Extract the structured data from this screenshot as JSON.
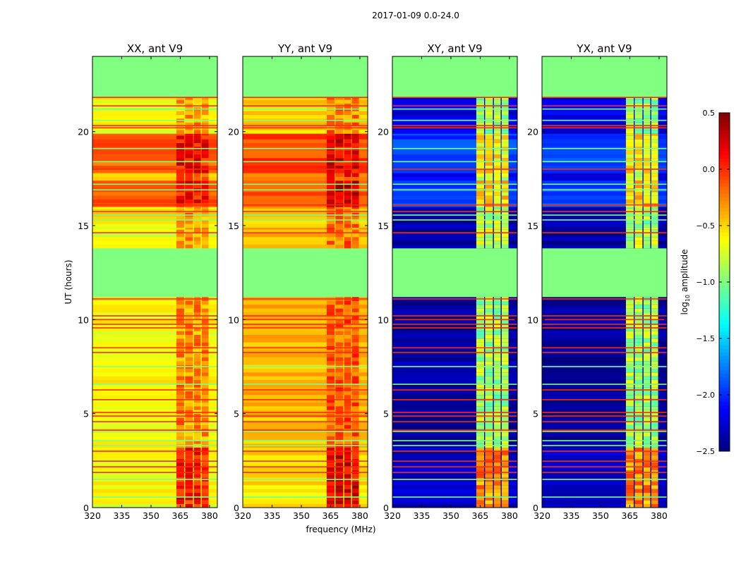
{
  "chart_data": {
    "type": "heatmap",
    "suptitle": "2017-01-09 0.0-24.0",
    "xlabel": "frequency (MHz)",
    "ylabel": "UT (hours)",
    "xlim": [
      320,
      384
    ],
    "ylim": [
      0,
      24
    ],
    "xticks": [
      320,
      335,
      350,
      365,
      380
    ],
    "yticks": [
      0,
      5,
      10,
      15,
      20
    ],
    "colorbar": {
      "label_main": "log",
      "label_sub": "10",
      "label_rest": " amplitude",
      "range": [
        -2.5,
        0.5
      ],
      "ticks": [
        "0.5",
        "0.0",
        "−0.5",
        "−1.0",
        "−1.5",
        "−2.0",
        "−2.5"
      ],
      "tick_values": [
        0.5,
        0.0,
        -0.5,
        -1.0,
        -1.5,
        -2.0,
        -2.5
      ],
      "colormap": "jet"
    },
    "flag_value": -1.0,
    "band_columns_mhz": [
      [
        363,
        367
      ],
      [
        367.5,
        371.5
      ],
      [
        372,
        375.5
      ],
      [
        376,
        379.5
      ]
    ],
    "continuum_range_mhz": [
      320,
      384
    ],
    "flagged_hours": [
      [
        11.2,
        13.8
      ],
      [
        21.8,
        24.0
      ]
    ],
    "red_lines_hours": [
      21.82,
      21.37,
      20.32,
      20.2,
      18.0,
      16.1,
      15.75,
      14.62,
      11.1,
      10.2,
      10.0,
      9.75,
      9.56,
      8.5,
      8.25,
      6.26,
      5.74,
      5.06,
      4.87,
      4.57,
      4.12,
      3.0,
      2.47,
      2.17,
      1.87
    ],
    "green_lines_hours": [
      21.2,
      20.6,
      19.1,
      18.4,
      17.2,
      16.9,
      15.56,
      15.3,
      7.5,
      6.56,
      4.05,
      3.56,
      3.3,
      1.5,
      0.56
    ],
    "panels": [
      {
        "title": "XX, ant V9",
        "segments": [
          {
            "t": [
              0,
              3.2
            ],
            "continuum": -0.65,
            "band": 0.05
          },
          {
            "t": [
              3.2,
              11.2
            ],
            "continuum": -0.62,
            "band": -0.3
          },
          {
            "t": [
              13.8,
              14.9
            ],
            "continuum": -0.7,
            "band": -0.35
          },
          {
            "t": [
              14.9,
              16.0
            ],
            "continuum": -0.55,
            "band": -0.3
          },
          {
            "t": [
              16.0,
              17.4
            ],
            "continuum": -0.12,
            "band": 0.1
          },
          {
            "t": [
              17.4,
              17.8
            ],
            "continuum": -0.5,
            "band": -0.2
          },
          {
            "t": [
              17.8,
              19.9
            ],
            "continuum": -0.15,
            "band": 0.1
          },
          {
            "t": [
              19.9,
              21.8
            ],
            "continuum": -0.65,
            "band": -0.35
          }
        ]
      },
      {
        "title": "YY, ant V9",
        "segments": [
          {
            "t": [
              0,
              3.2
            ],
            "continuum": -0.55,
            "band": 0.2
          },
          {
            "t": [
              3.2,
              11.2
            ],
            "continuum": -0.42,
            "band": -0.15
          },
          {
            "t": [
              13.8,
              14.9
            ],
            "continuum": -0.4,
            "band": -0.2
          },
          {
            "t": [
              14.9,
              16.0
            ],
            "continuum": -0.45,
            "band": -0.2
          },
          {
            "t": [
              16.0,
              17.4
            ],
            "continuum": -0.1,
            "band": 0.25
          },
          {
            "t": [
              17.4,
              17.8
            ],
            "continuum": -0.35,
            "band": 0.0
          },
          {
            "t": [
              17.8,
              19.9
            ],
            "continuum": -0.08,
            "band": 0.2
          },
          {
            "t": [
              19.9,
              21.8
            ],
            "continuum": -0.48,
            "band": -0.25
          }
        ]
      },
      {
        "title": "XY, ant V9",
        "segments": [
          {
            "t": [
              0,
              3.2
            ],
            "continuum": -2.3,
            "band": -0.3
          },
          {
            "t": [
              3.2,
              11.2
            ],
            "continuum": -2.4,
            "band": -0.9
          },
          {
            "t": [
              13.8,
              14.9
            ],
            "continuum": -2.4,
            "band": -0.8
          },
          {
            "t": [
              14.9,
              16.0
            ],
            "continuum": -2.35,
            "band": -0.9
          },
          {
            "t": [
              16.0,
              17.4
            ],
            "continuum": -1.9,
            "band": -0.5
          },
          {
            "t": [
              17.4,
              17.8
            ],
            "continuum": -2.2,
            "band": -0.8
          },
          {
            "t": [
              17.8,
              19.9
            ],
            "continuum": -1.95,
            "band": -0.6
          },
          {
            "t": [
              19.9,
              21.8
            ],
            "continuum": -2.2,
            "band": -0.9
          }
        ]
      },
      {
        "title": "YX, ant V9",
        "segments": [
          {
            "t": [
              0,
              3.2
            ],
            "continuum": -2.3,
            "band": -0.3
          },
          {
            "t": [
              3.2,
              11.2
            ],
            "continuum": -2.4,
            "band": -0.9
          },
          {
            "t": [
              13.8,
              14.9
            ],
            "continuum": -2.4,
            "band": -0.8
          },
          {
            "t": [
              14.9,
              16.0
            ],
            "continuum": -2.35,
            "band": -0.9
          },
          {
            "t": [
              16.0,
              17.4
            ],
            "continuum": -1.9,
            "band": -0.5
          },
          {
            "t": [
              17.4,
              17.8
            ],
            "continuum": -2.2,
            "band": -0.8
          },
          {
            "t": [
              17.8,
              19.9
            ],
            "continuum": -1.95,
            "band": -0.6
          },
          {
            "t": [
              19.9,
              21.8
            ],
            "continuum": -2.2,
            "band": -0.9
          }
        ]
      }
    ]
  }
}
